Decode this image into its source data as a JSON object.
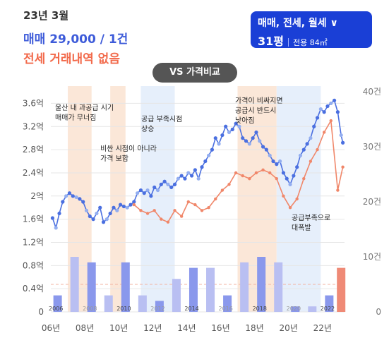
{
  "header": {
    "date": "23년 3월",
    "sale_summary": "매매 29,000 / 1건",
    "jeonse_summary": "전세 거래내역 없음"
  },
  "selector": {
    "type_label": "매매, 전세, 월세 ∨",
    "size_label": "31평",
    "area_label": "전용 84㎡"
  },
  "compare_button": "VS 가격비교",
  "colors": {
    "sale": "#4a6fe0",
    "sale_light": "#93aef0",
    "jeonse": "#f0876a",
    "accent": "#1a3fd6",
    "shade_orange": "#fbe7d8",
    "shade_blue": "#e6effb"
  },
  "chart_data": {
    "type": "line",
    "y_ticks_left": [
      "0",
      "0.4억",
      "0.8억",
      "1.2억",
      "1.6억",
      "2억",
      "2.4억",
      "2.8억",
      "3.2억",
      "3.6억"
    ],
    "y_ticks_right": [
      "0",
      "10건",
      "20건",
      "30건",
      "40건"
    ],
    "x_ticks": [
      "06년",
      "08년",
      "10년",
      "12년",
      "14년",
      "16년",
      "18년",
      "20년",
      "22년"
    ],
    "year_labels": [
      "2006",
      "2008",
      "2010",
      "2012",
      "2014",
      "2016",
      "2018",
      "2020",
      "2022"
    ],
    "ylim_left": [
      0,
      3.8
    ],
    "ylim_right": [
      0,
      40
    ],
    "xlim": [
      2006.0,
      2023.3
    ],
    "grid": true,
    "shaded_periods": [
      {
        "start": 2007.0,
        "end": 2008.4,
        "kind": "up"
      },
      {
        "start": 2009.5,
        "end": 2010.4,
        "kind": "up"
      },
      {
        "start": 2011.3,
        "end": 2013.3,
        "kind": "down"
      },
      {
        "start": 2017.0,
        "end": 2019.3,
        "kind": "up"
      },
      {
        "start": 2019.3,
        "end": 2021.9,
        "kind": "down"
      }
    ],
    "annotations": [
      {
        "lines": [
          "울산 내 과공급 시기",
          "매매가 무너짐"
        ]
      },
      {
        "lines": [
          "비싼 시점이 아니라",
          "가격 보합"
        ]
      },
      {
        "lines": [
          "공급 부족시점",
          "상승"
        ]
      },
      {
        "lines": [
          "가격이 비싸지면",
          "공급시 반드시",
          "낮아짐"
        ]
      },
      {
        "lines": [
          "공급부족으로",
          "대폭발"
        ]
      }
    ],
    "series": [
      {
        "name": "매매",
        "x": [
          2006.1,
          2006.3,
          2006.5,
          2006.7,
          2006.9,
          2007.1,
          2007.3,
          2007.5,
          2007.7,
          2007.9,
          2008.1,
          2008.3,
          2008.5,
          2008.7,
          2008.9,
          2009.1,
          2009.3,
          2009.5,
          2009.7,
          2009.9,
          2010.1,
          2010.3,
          2010.5,
          2010.7,
          2010.9,
          2011.1,
          2011.3,
          2011.5,
          2011.7,
          2011.9,
          2012.1,
          2012.3,
          2012.5,
          2012.7,
          2012.9,
          2013.1,
          2013.3,
          2013.5,
          2013.7,
          2013.9,
          2014.1,
          2014.3,
          2014.5,
          2014.7,
          2014.9,
          2015.1,
          2015.3,
          2015.5,
          2015.7,
          2015.9,
          2016.1,
          2016.3,
          2016.5,
          2016.7,
          2016.9,
          2017.1,
          2017.3,
          2017.5,
          2017.7,
          2017.9,
          2018.1,
          2018.3,
          2018.5,
          2018.7,
          2018.9,
          2019.1,
          2019.3,
          2019.5,
          2019.7,
          2019.9,
          2020.1,
          2020.3,
          2020.5,
          2020.7,
          2020.9,
          2021.1,
          2021.3,
          2021.5,
          2021.7,
          2021.9,
          2022.1,
          2022.3,
          2022.5,
          2022.7,
          2022.9,
          2023.1,
          2023.2
        ],
        "values": [
          1.62,
          1.45,
          1.7,
          1.9,
          2.0,
          2.05,
          2.0,
          1.98,
          1.95,
          1.9,
          1.75,
          1.65,
          1.6,
          1.7,
          1.8,
          1.55,
          1.6,
          1.7,
          1.8,
          1.75,
          1.85,
          1.82,
          1.8,
          1.85,
          1.9,
          2.05,
          2.1,
          2.05,
          2.1,
          2.0,
          2.15,
          2.1,
          2.2,
          2.25,
          2.2,
          2.15,
          2.2,
          2.3,
          2.35,
          2.3,
          2.4,
          2.35,
          2.45,
          2.3,
          2.5,
          2.6,
          2.7,
          2.8,
          3.0,
          2.9,
          3.05,
          3.2,
          3.1,
          3.15,
          3.25,
          3.2,
          3.0,
          2.95,
          2.9,
          3.0,
          3.1,
          2.95,
          2.85,
          2.8,
          2.7,
          2.6,
          2.55,
          2.6,
          2.4,
          2.3,
          2.2,
          2.35,
          2.5,
          2.7,
          2.8,
          2.9,
          3.0,
          3.2,
          3.35,
          3.5,
          3.45,
          3.55,
          3.6,
          3.65,
          3.45,
          3.05,
          2.92
        ]
      },
      {
        "name": "전세",
        "x": [
          2010.9,
          2011.3,
          2011.7,
          2012.1,
          2012.5,
          2012.9,
          2013.3,
          2013.7,
          2014.1,
          2014.5,
          2014.9,
          2015.3,
          2015.7,
          2016.1,
          2016.5,
          2016.9,
          2017.3,
          2017.7,
          2018.1,
          2018.5,
          2018.9,
          2019.3,
          2019.7,
          2020.1,
          2020.5,
          2020.9,
          2021.3,
          2021.7,
          2022.1,
          2022.5,
          2022.9,
          2023.2
        ],
        "values": [
          1.85,
          1.75,
          1.7,
          1.75,
          1.6,
          1.55,
          1.75,
          1.65,
          1.9,
          1.85,
          1.75,
          1.8,
          1.95,
          2.1,
          2.2,
          2.4,
          2.35,
          2.3,
          2.4,
          2.45,
          2.4,
          2.3,
          2.0,
          1.8,
          1.95,
          2.3,
          2.6,
          2.8,
          3.1,
          3.3,
          2.1,
          2.5
        ]
      }
    ],
    "volume": {
      "x": [
        2006.4,
        2007.4,
        2008.4,
        2009.4,
        2010.4,
        2011.4,
        2012.4,
        2013.4,
        2014.4,
        2015.4,
        2016.4,
        2017.4,
        2018.4,
        2019.4,
        2020.4,
        2021.4,
        2022.4,
        2023.1
      ],
      "values": [
        3,
        10,
        9,
        3,
        9,
        3,
        2,
        6,
        8,
        8,
        3,
        9,
        10,
        9,
        1,
        1,
        3,
        8
      ]
    }
  }
}
